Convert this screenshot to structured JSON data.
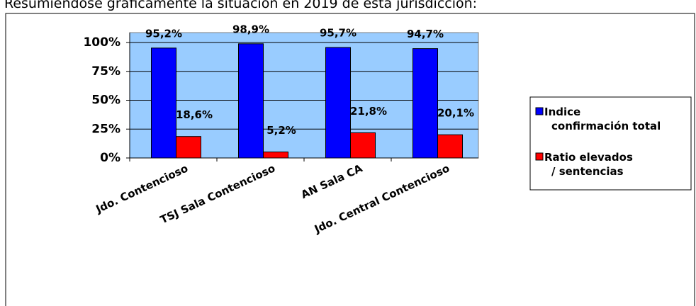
{
  "caption": "Resumiéndose gráficamente la situación en 2019 de esta jurisdicción:",
  "chart_data": {
    "type": "bar",
    "categories": [
      "Jdo. Contencioso",
      "TSJ Sala Contencioso",
      "AN Sala CA",
      "Jdo. Central Contencioso"
    ],
    "series": [
      {
        "name": "Indice confirmación total",
        "color": "#0000ff",
        "values": [
          95.2,
          98.9,
          95.7,
          94.7
        ],
        "value_labels": [
          "95,2%",
          "98,9%",
          "95,7%",
          "94,7%"
        ]
      },
      {
        "name": "Ratio elevados / sentencias",
        "color": "#ff0000",
        "values": [
          18.6,
          5.2,
          21.8,
          20.1
        ],
        "value_labels": [
          "18,6%",
          "5,2%",
          "21,8%",
          "20,1%"
        ]
      }
    ],
    "ylim": [
      0,
      100
    ],
    "yticks": [
      {
        "value": 0,
        "label": "0%"
      },
      {
        "value": 25,
        "label": "25%"
      },
      {
        "value": 50,
        "label": "50%"
      },
      {
        "value": 75,
        "label": "75%"
      },
      {
        "value": 100,
        "label": "100%"
      }
    ],
    "grid": true,
    "legend": "right"
  }
}
